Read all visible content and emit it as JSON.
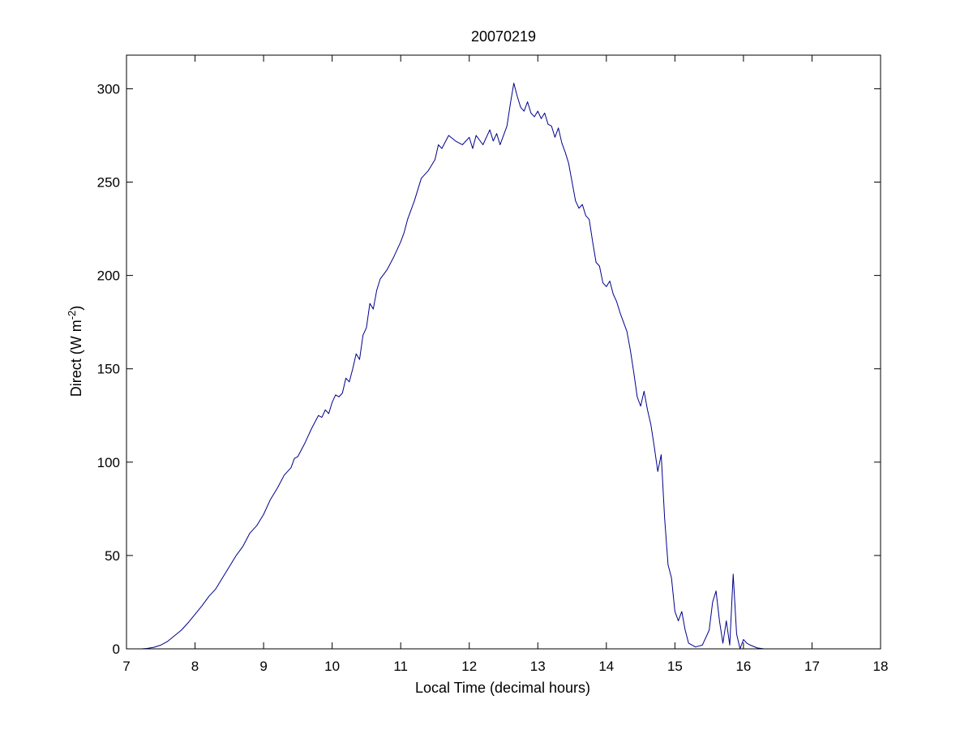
{
  "chart_data": {
    "type": "line",
    "title": "20070219",
    "xlabel": "Local Time (decimal hours)",
    "ylabel": "Direct (W m",
    "ylabel_superscript": "-2",
    "ylabel_suffix": ")",
    "xlim": [
      7,
      18
    ],
    "ylim": [
      0,
      318
    ],
    "xticks": [
      7,
      8,
      9,
      10,
      11,
      12,
      13,
      14,
      15,
      16,
      17,
      18
    ],
    "yticks": [
      0,
      50,
      100,
      150,
      200,
      250,
      300
    ],
    "grid": false,
    "legend": "none",
    "series": [
      {
        "color": "#00008b",
        "points": [
          [
            7.22,
            0
          ],
          [
            7.3,
            0.2
          ],
          [
            7.4,
            0.8
          ],
          [
            7.5,
            2
          ],
          [
            7.6,
            4
          ],
          [
            7.7,
            7
          ],
          [
            7.8,
            10
          ],
          [
            7.9,
            14
          ],
          [
            8.0,
            18.5
          ],
          [
            8.1,
            23
          ],
          [
            8.2,
            28
          ],
          [
            8.3,
            32
          ],
          [
            8.4,
            38
          ],
          [
            8.5,
            44
          ],
          [
            8.6,
            50
          ],
          [
            8.7,
            55
          ],
          [
            8.8,
            62
          ],
          [
            8.9,
            66
          ],
          [
            9.0,
            72
          ],
          [
            9.1,
            80
          ],
          [
            9.2,
            86
          ],
          [
            9.3,
            93
          ],
          [
            9.4,
            97
          ],
          [
            9.45,
            102
          ],
          [
            9.5,
            103
          ],
          [
            9.6,
            110
          ],
          [
            9.7,
            118
          ],
          [
            9.8,
            125
          ],
          [
            9.85,
            124
          ],
          [
            9.9,
            128
          ],
          [
            9.95,
            126
          ],
          [
            10.0,
            132
          ],
          [
            10.05,
            136
          ],
          [
            10.1,
            135
          ],
          [
            10.15,
            137
          ],
          [
            10.2,
            145
          ],
          [
            10.25,
            143
          ],
          [
            10.3,
            150
          ],
          [
            10.35,
            158
          ],
          [
            10.4,
            155
          ],
          [
            10.45,
            168
          ],
          [
            10.5,
            172
          ],
          [
            10.55,
            185
          ],
          [
            10.6,
            182
          ],
          [
            10.65,
            192
          ],
          [
            10.7,
            198
          ],
          [
            10.8,
            203
          ],
          [
            10.9,
            210
          ],
          [
            11.0,
            218
          ],
          [
            11.05,
            223
          ],
          [
            11.1,
            230
          ],
          [
            11.2,
            240
          ],
          [
            11.3,
            252
          ],
          [
            11.4,
            256
          ],
          [
            11.5,
            262
          ],
          [
            11.55,
            270
          ],
          [
            11.6,
            268
          ],
          [
            11.7,
            275
          ],
          [
            11.8,
            272
          ],
          [
            11.9,
            270
          ],
          [
            12.0,
            274
          ],
          [
            12.05,
            268
          ],
          [
            12.1,
            275
          ],
          [
            12.2,
            270
          ],
          [
            12.3,
            278
          ],
          [
            12.35,
            272
          ],
          [
            12.4,
            276
          ],
          [
            12.45,
            270
          ],
          [
            12.5,
            275
          ],
          [
            12.55,
            280
          ],
          [
            12.6,
            292
          ],
          [
            12.65,
            303
          ],
          [
            12.7,
            296
          ],
          [
            12.75,
            290
          ],
          [
            12.8,
            288
          ],
          [
            12.85,
            293
          ],
          [
            12.9,
            287
          ],
          [
            12.95,
            285
          ],
          [
            13.0,
            288
          ],
          [
            13.05,
            284
          ],
          [
            13.1,
            287
          ],
          [
            13.15,
            281
          ],
          [
            13.2,
            280
          ],
          [
            13.25,
            274
          ],
          [
            13.3,
            279
          ],
          [
            13.35,
            271
          ],
          [
            13.4,
            266
          ],
          [
            13.45,
            260
          ],
          [
            13.5,
            250
          ],
          [
            13.55,
            240
          ],
          [
            13.6,
            236
          ],
          [
            13.65,
            238
          ],
          [
            13.7,
            232
          ],
          [
            13.75,
            230
          ],
          [
            13.8,
            218
          ],
          [
            13.85,
            207
          ],
          [
            13.9,
            205
          ],
          [
            13.95,
            196
          ],
          [
            14.0,
            194
          ],
          [
            14.05,
            197
          ],
          [
            14.1,
            190
          ],
          [
            14.15,
            186
          ],
          [
            14.2,
            180
          ],
          [
            14.25,
            175
          ],
          [
            14.3,
            170
          ],
          [
            14.35,
            160
          ],
          [
            14.4,
            148
          ],
          [
            14.45,
            135
          ],
          [
            14.5,
            130
          ],
          [
            14.55,
            138
          ],
          [
            14.6,
            128
          ],
          [
            14.65,
            120
          ],
          [
            14.7,
            108
          ],
          [
            14.75,
            95
          ],
          [
            14.8,
            104
          ],
          [
            14.85,
            70
          ],
          [
            14.9,
            45
          ],
          [
            14.95,
            38
          ],
          [
            15.0,
            20
          ],
          [
            15.05,
            15
          ],
          [
            15.1,
            20
          ],
          [
            15.15,
            10
          ],
          [
            15.2,
            3
          ],
          [
            15.3,
            1
          ],
          [
            15.4,
            2
          ],
          [
            15.5,
            10
          ],
          [
            15.55,
            25
          ],
          [
            15.6,
            31
          ],
          [
            15.65,
            15
          ],
          [
            15.7,
            3
          ],
          [
            15.75,
            15
          ],
          [
            15.8,
            2
          ],
          [
            15.85,
            40
          ],
          [
            15.9,
            8
          ],
          [
            15.95,
            0
          ],
          [
            16.0,
            5
          ],
          [
            16.05,
            3
          ],
          [
            16.1,
            2
          ],
          [
            16.2,
            0.5
          ],
          [
            16.3,
            0
          ],
          [
            17.3,
            0
          ]
        ]
      }
    ]
  }
}
